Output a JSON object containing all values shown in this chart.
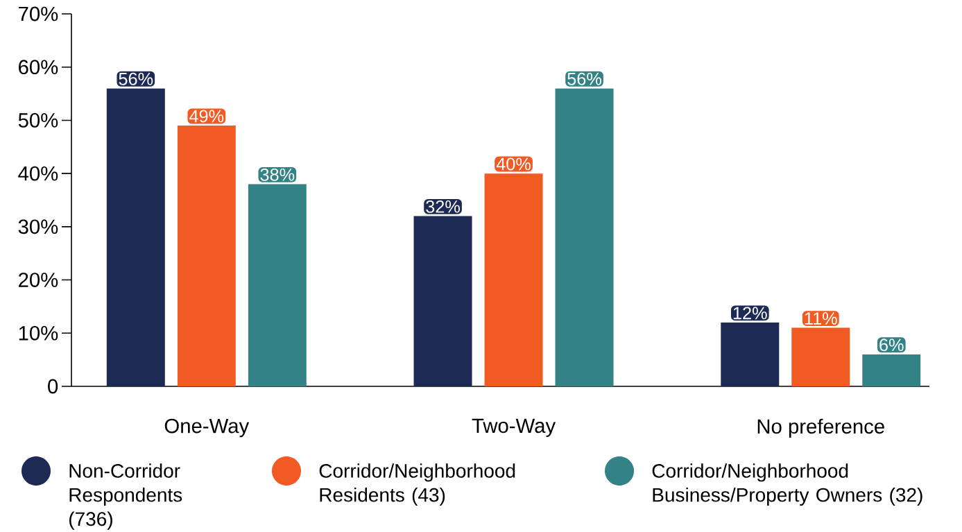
{
  "chart_data": {
    "type": "bar",
    "categories": [
      "One-Way",
      "Two-Way",
      "No preference"
    ],
    "series": [
      {
        "name": "Non-Corridor Respondents (736)",
        "color": "#1d2a54",
        "values": [
          56,
          32,
          12
        ],
        "value_labels": [
          "56%",
          "32%",
          "12%"
        ]
      },
      {
        "name": "Corridor/Neighborhood Residents (43)",
        "color": "#f15a22",
        "values": [
          49,
          40,
          11
        ],
        "value_labels": [
          "49%",
          "40%",
          "11%"
        ]
      },
      {
        "name": "Corridor/Neighborhood Business/Property Owners (32)",
        "color": "#338286",
        "values": [
          38,
          56,
          6
        ],
        "value_labels": [
          "38%",
          "56%",
          "6%"
        ]
      }
    ],
    "ylim": [
      0,
      70
    ],
    "yticks": [
      0,
      {
        "value": 10,
        "label": "10%"
      },
      {
        "value": 20,
        "label": "20%"
      },
      {
        "value": 30,
        "label": "30%"
      },
      {
        "value": 40,
        "label": "40%"
      },
      {
        "value": 50,
        "label": "50%"
      },
      {
        "value": 60,
        "label": "60%"
      },
      {
        "value": 70,
        "label": "70%"
      }
    ],
    "grid": false,
    "legend": "bottom"
  }
}
